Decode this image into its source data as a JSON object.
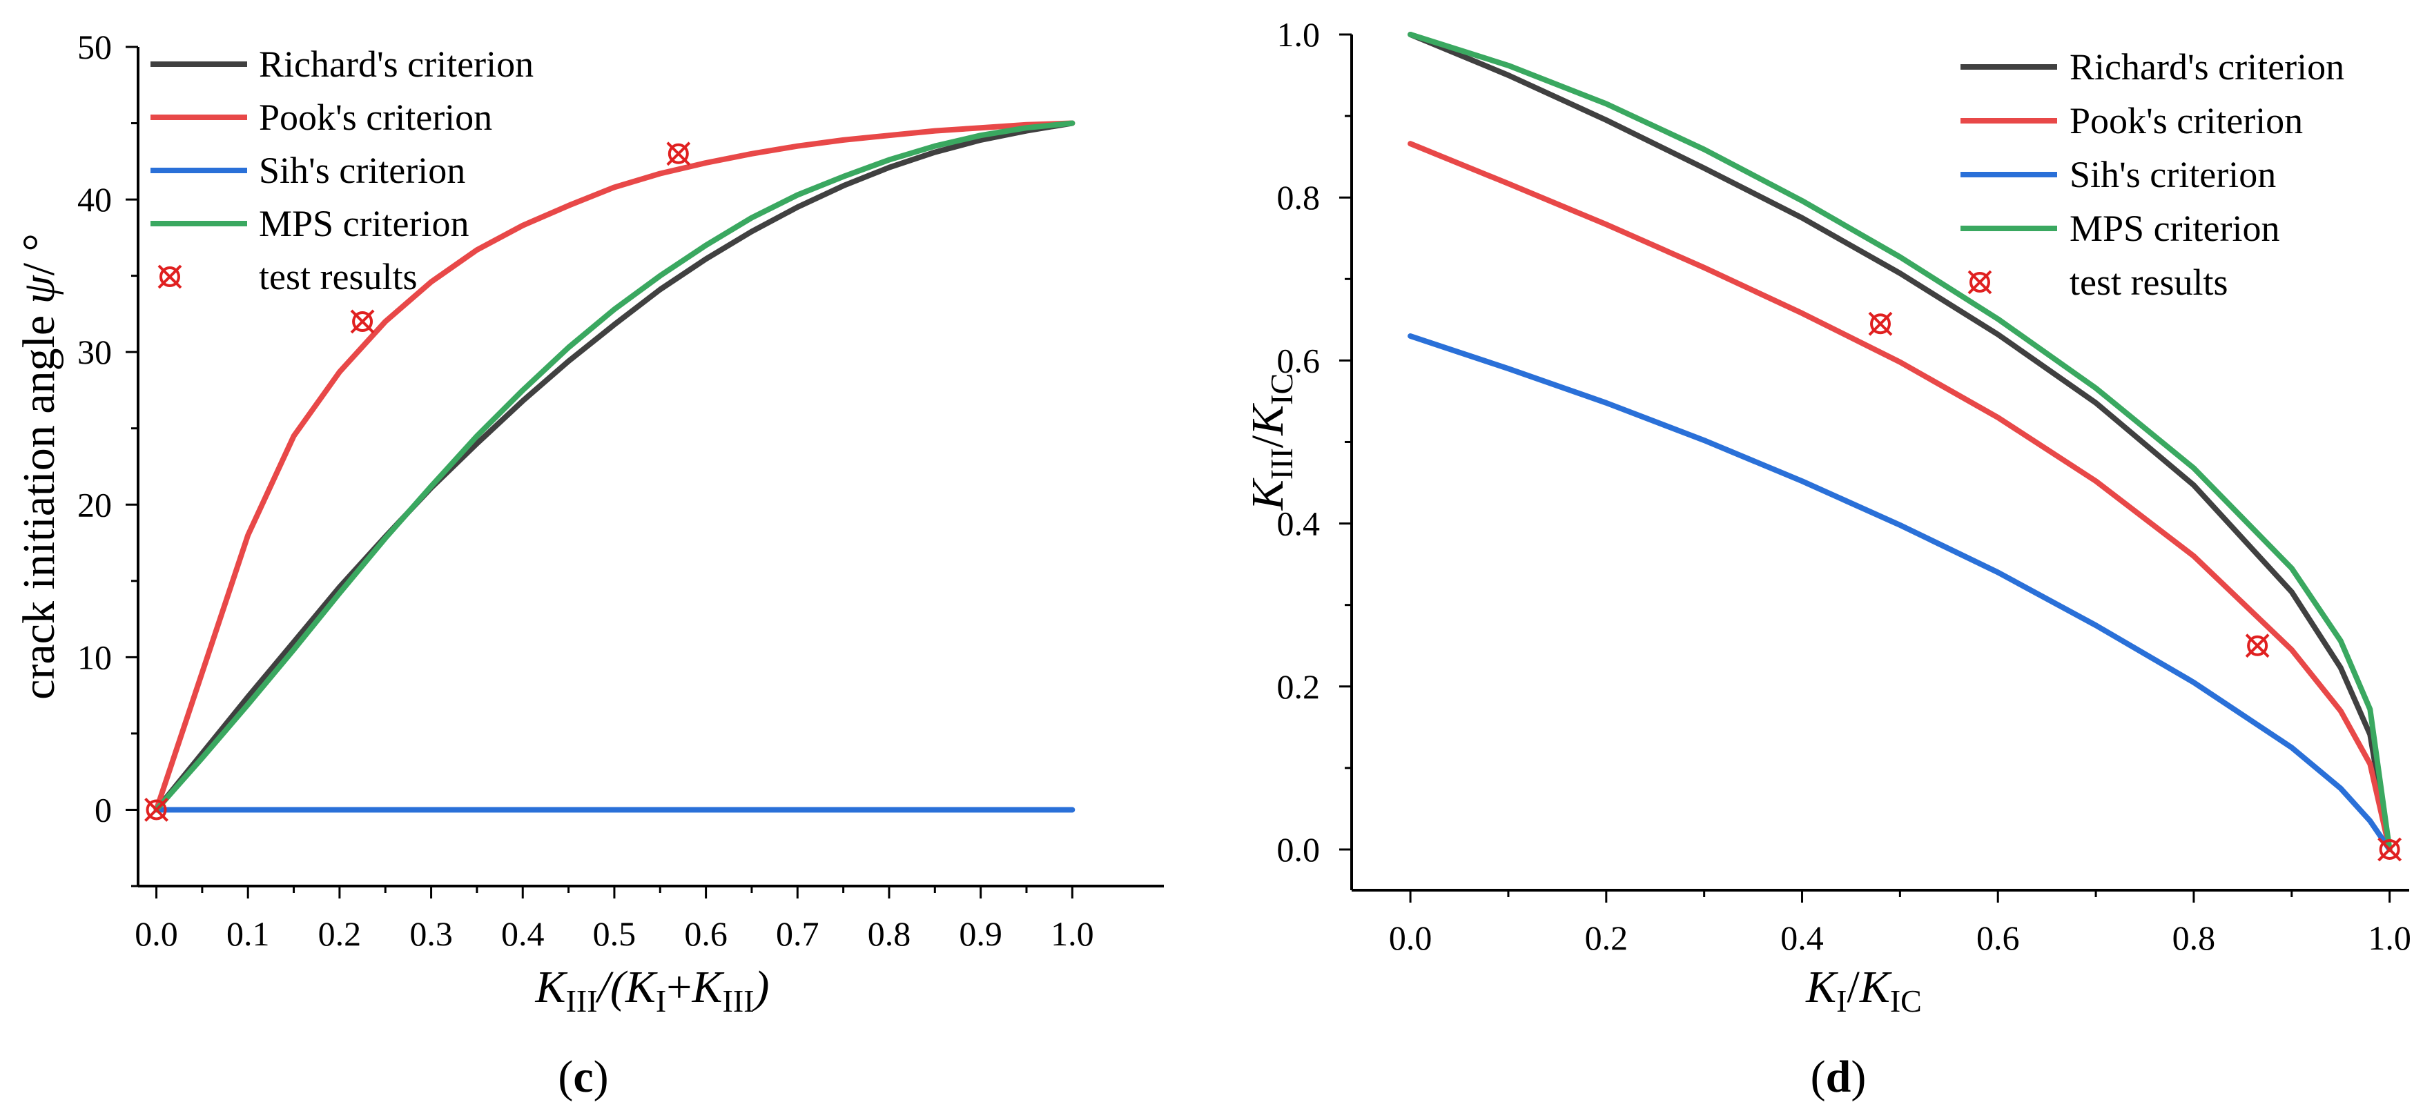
{
  "colors": {
    "richard": "#404040",
    "pook": "#e84848",
    "sih": "#2a70d8",
    "mps": "#3aa860",
    "test": "#e02020",
    "axis": "#000000"
  },
  "chart_data": [
    {
      "panel": "c",
      "type": "line",
      "panel_label": "c",
      "ylabel": "crack initiation angle ψ/ °",
      "ylabel_parts": {
        "text": "crack initiation angle ",
        "symbol": "ψ",
        "unit": "/ °"
      },
      "xlabel": "K_III/(K_I+K_III)",
      "xlabel_parts": {
        "k1": "K",
        "s1": "III",
        "mid": "/(",
        "k2": "K",
        "s2": "I",
        "plus": "+",
        "k3": "K",
        "s3": "III",
        "close": ")"
      },
      "xlim": [
        -0.02,
        1.1
      ],
      "ylim": [
        -5,
        50
      ],
      "xticks": [
        "0.0",
        "0.1",
        "0.2",
        "0.3",
        "0.4",
        "0.5",
        "0.6",
        "0.7",
        "0.8",
        "0.9",
        "1.0"
      ],
      "xtick_values": [
        0,
        0.1,
        0.2,
        0.3,
        0.4,
        0.5,
        0.6,
        0.7,
        0.8,
        0.9,
        1.0
      ],
      "yticks": [
        "0",
        "10",
        "20",
        "30",
        "40",
        "50"
      ],
      "ytick_values": [
        0,
        10,
        20,
        30,
        40,
        50
      ],
      "legend": {
        "position": "top-left",
        "entries": [
          "Richard's criterion",
          "Pook's criterion",
          "Sih's criterion",
          "MPS criterion",
          "test results"
        ]
      },
      "series": [
        {
          "name": "Richard's criterion",
          "color_key": "richard",
          "x": [
            0,
            0.05,
            0.1,
            0.15,
            0.2,
            0.25,
            0.3,
            0.35,
            0.4,
            0.45,
            0.5,
            0.55,
            0.6,
            0.65,
            0.7,
            0.75,
            0.8,
            0.85,
            0.9,
            0.95,
            1.0
          ],
          "y": [
            0,
            3.7,
            7.4,
            11.0,
            14.6,
            17.9,
            21.1,
            24.0,
            26.8,
            29.4,
            31.8,
            34.1,
            36.1,
            37.9,
            39.5,
            40.9,
            42.1,
            43.1,
            43.9,
            44.5,
            45.0
          ]
        },
        {
          "name": "Pook's criterion",
          "color_key": "pook",
          "x": [
            0,
            0.05,
            0.1,
            0.15,
            0.2,
            0.25,
            0.3,
            0.35,
            0.4,
            0.45,
            0.5,
            0.55,
            0.6,
            0.65,
            0.7,
            0.75,
            0.8,
            0.85,
            0.9,
            0.95,
            1.0
          ],
          "y": [
            0,
            9.0,
            18.0,
            24.5,
            28.7,
            32.0,
            34.6,
            36.7,
            38.3,
            39.6,
            40.8,
            41.7,
            42.4,
            43.0,
            43.5,
            43.9,
            44.2,
            44.5,
            44.7,
            44.9,
            45.0
          ]
        },
        {
          "name": "Sih's criterion",
          "color_key": "sih",
          "x": [
            0,
            1.0
          ],
          "y": [
            0,
            0
          ]
        },
        {
          "name": "MPS criterion",
          "color_key": "mps",
          "x": [
            0,
            0.05,
            0.1,
            0.15,
            0.2,
            0.25,
            0.3,
            0.35,
            0.4,
            0.45,
            0.5,
            0.55,
            0.6,
            0.65,
            0.7,
            0.75,
            0.8,
            0.85,
            0.9,
            0.95,
            1.0
          ],
          "y": [
            0,
            3.4,
            6.9,
            10.5,
            14.2,
            17.8,
            21.2,
            24.5,
            27.5,
            30.3,
            32.8,
            35.0,
            37.0,
            38.8,
            40.3,
            41.5,
            42.6,
            43.5,
            44.2,
            44.7,
            45.0
          ]
        }
      ],
      "test_results": {
        "name": "test results",
        "color_key": "test",
        "x": [
          0,
          0.225,
          0.57
        ],
        "y": [
          0,
          32,
          43
        ]
      }
    },
    {
      "panel": "d",
      "type": "line",
      "panel_label": "d",
      "ylabel": "K_III/K_IC",
      "ylabel_parts": {
        "k1": "K",
        "s1": "III",
        "mid": "/",
        "k2": "K",
        "s2": "IC"
      },
      "xlabel": "K_I/K_IC",
      "xlabel_parts": {
        "k1": "K",
        "s1": "I",
        "mid": "/",
        "k2": "K",
        "s2": "IC"
      },
      "xlim": [
        -0.06,
        1.02
      ],
      "ylim": [
        -0.05,
        1.0
      ],
      "xticks": [
        "0.0",
        "0.2",
        "0.4",
        "0.6",
        "0.8",
        "1.0"
      ],
      "xtick_values": [
        0,
        0.2,
        0.4,
        0.6,
        0.8,
        1.0
      ],
      "yticks": [
        "0.0",
        "0.2",
        "0.4",
        "0.6",
        "0.8",
        "1.0"
      ],
      "ytick_values": [
        0,
        0.2,
        0.4,
        0.6,
        0.8,
        1.0
      ],
      "legend": {
        "position": "top-right",
        "entries": [
          "Richard's criterion",
          "Pook's criterion",
          "Sih's criterion",
          "MPS criterion",
          "test results"
        ]
      },
      "series": [
        {
          "name": "Richard's criterion",
          "color_key": "richard",
          "x": [
            0,
            0.1,
            0.2,
            0.3,
            0.4,
            0.5,
            0.6,
            0.7,
            0.8,
            0.9,
            0.95,
            0.98,
            1.0
          ],
          "y": [
            1.0,
            0.95,
            0.895,
            0.836,
            0.775,
            0.707,
            0.632,
            0.548,
            0.447,
            0.316,
            0.223,
            0.141,
            0.0
          ]
        },
        {
          "name": "Pook's criterion",
          "color_key": "pook",
          "x": [
            0,
            0.1,
            0.2,
            0.3,
            0.4,
            0.5,
            0.6,
            0.7,
            0.8,
            0.9,
            0.95,
            0.98,
            1.0
          ],
          "y": [
            0.866,
            0.817,
            0.767,
            0.714,
            0.658,
            0.598,
            0.53,
            0.452,
            0.36,
            0.245,
            0.17,
            0.105,
            0.0
          ]
        },
        {
          "name": "Sih's criterion",
          "color_key": "sih",
          "x": [
            0,
            0.1,
            0.2,
            0.3,
            0.4,
            0.5,
            0.6,
            0.7,
            0.8,
            0.9,
            0.95,
            0.98,
            1.0
          ],
          "y": [
            0.63,
            0.59,
            0.548,
            0.502,
            0.452,
            0.398,
            0.34,
            0.275,
            0.205,
            0.125,
            0.075,
            0.035,
            0.0
          ]
        },
        {
          "name": "MPS criterion",
          "color_key": "mps",
          "x": [
            0,
            0.1,
            0.2,
            0.3,
            0.4,
            0.5,
            0.6,
            0.7,
            0.8,
            0.9,
            0.95,
            0.98,
            1.0
          ],
          "y": [
            1.0,
            0.962,
            0.915,
            0.859,
            0.796,
            0.727,
            0.651,
            0.566,
            0.468,
            0.345,
            0.256,
            0.172,
            0.0
          ]
        }
      ],
      "test_results": {
        "name": "test results",
        "color_key": "test",
        "x": [
          0.48,
          0.865,
          1.0
        ],
        "y": [
          0.645,
          0.25,
          0.0
        ]
      }
    }
  ]
}
